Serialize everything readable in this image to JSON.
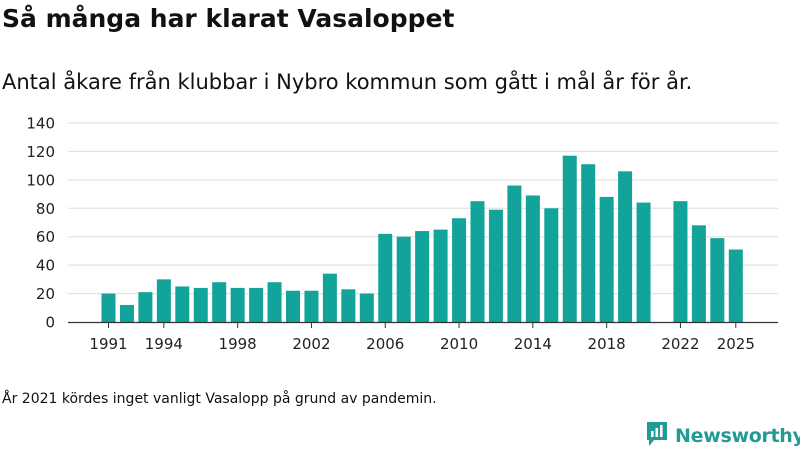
{
  "header": {
    "title": "Så många har klarat Vasaloppet",
    "subtitle": "Antal åkare från klubbar i Nybro kommun som gått i mål år för år."
  },
  "footer": {
    "note": "År 2021 kördes inget vanligt Vasalopp på grund av pandemin.",
    "brand": "Newsworthy"
  },
  "colors": {
    "bar": "#12a39a",
    "brand": "#239b95",
    "grid": "#dddddd",
    "axis": "#333333"
  },
  "chart_data": {
    "type": "bar",
    "title": "Så många har klarat Vasaloppet",
    "subtitle": "Antal åkare från klubbar i Nybro kommun som gått i mål år för år.",
    "xlabel": "",
    "ylabel": "",
    "ylim": [
      0,
      140
    ],
    "yticks": [
      0,
      20,
      40,
      60,
      80,
      100,
      120,
      140
    ],
    "xticks": [
      1991,
      1994,
      1998,
      2002,
      2006,
      2010,
      2014,
      2018,
      2022,
      2025
    ],
    "grid": true,
    "legend": "none",
    "x": [
      1991,
      1992,
      1993,
      1994,
      1995,
      1996,
      1997,
      1998,
      1999,
      2000,
      2001,
      2002,
      2003,
      2004,
      2005,
      2006,
      2007,
      2008,
      2009,
      2010,
      2011,
      2012,
      2013,
      2014,
      2015,
      2016,
      2017,
      2018,
      2019,
      2020,
      2021,
      2022,
      2023,
      2024,
      2025
    ],
    "values": [
      20,
      12,
      21,
      30,
      25,
      24,
      28,
      24,
      24,
      28,
      22,
      22,
      34,
      23,
      20,
      62,
      60,
      64,
      65,
      73,
      85,
      79,
      96,
      89,
      80,
      117,
      111,
      88,
      106,
      84,
      null,
      85,
      68,
      59,
      51
    ]
  }
}
